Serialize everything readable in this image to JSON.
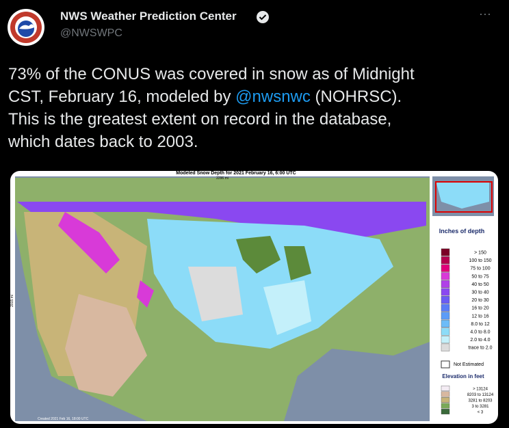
{
  "tweet": {
    "author": {
      "name": "NWS Weather Prediction Center",
      "handle": "@NWSWPC",
      "menu": "···"
    },
    "lines": [
      [
        {
          "text": "73% of the CONUS was covered in snow as of Midnight"
        }
      ],
      [
        {
          "text": "CST, February 16, modeled by "
        },
        {
          "text": "@nwsnwc",
          "link": true
        },
        {
          "text": " (NOHRSC)."
        }
      ],
      [
        {
          "text": "This is the greatest extent on record in the database,"
        }
      ],
      [
        {
          "text": "which dates back to 2003."
        }
      ]
    ],
    "image": {
      "title": "Modeled Snow Depth for 2021 February 16, 6:00 UTC",
      "scale_top": "2296 mi",
      "scale_side": "2015 mi",
      "footer": "Created 2021 Feb 16, 18:00 UTC",
      "depth_legend": {
        "title": "Inches of depth",
        "items": [
          {
            "label": "> 150",
            "color": "#7a0026"
          },
          {
            "label": "100 to 150",
            "color": "#b4004e"
          },
          {
            "label": "75 to 100",
            "color": "#e0007a"
          },
          {
            "label": "50 to 75",
            "color": "#d83ad8"
          },
          {
            "label": "40 to 50",
            "color": "#b040e8"
          },
          {
            "label": "30 to 40",
            "color": "#8a48f0"
          },
          {
            "label": "20 to 30",
            "color": "#6a5cf4"
          },
          {
            "label": "16 to 20",
            "color": "#5a7cf6"
          },
          {
            "label": "12 to 16",
            "color": "#5c9cf8"
          },
          {
            "label": "8.0 to 12",
            "color": "#6cbcf8"
          },
          {
            "label": "4.0 to 8.0",
            "color": "#8cdcf8"
          },
          {
            "label": "2.0 to 4.0",
            "color": "#c4f0fa"
          },
          {
            "label": "trace to 2.0",
            "color": "#dcdcdc"
          }
        ]
      },
      "not_estimated": "Not Estimated",
      "elevation_legend": {
        "title": "Elevation in feet",
        "items": [
          {
            "label": "> 13124",
            "color": "#f4ecf4"
          },
          {
            "label": "8203 to 13124",
            "color": "#d8b8a0"
          },
          {
            "label": "3281 to 8203",
            "color": "#c8b478"
          },
          {
            "label": "3 to 3281",
            "color": "#7aa858"
          },
          {
            "label": "< 3",
            "color": "#3a6a3a"
          }
        ]
      }
    }
  }
}
